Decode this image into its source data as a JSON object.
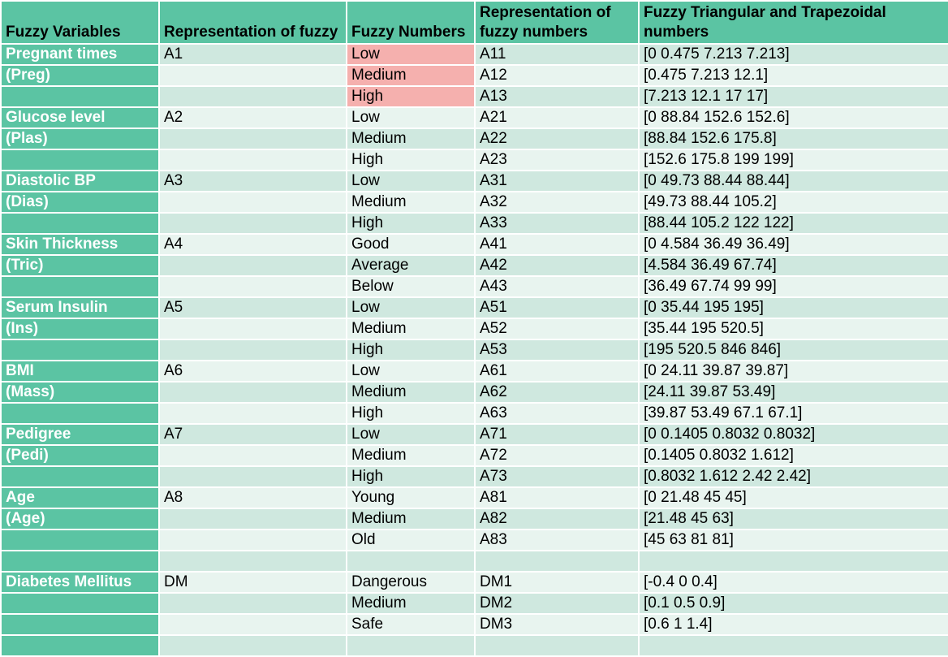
{
  "headers": [
    "Fuzzy Variables",
    "Representation of fuzzy",
    "Fuzzy Numbers",
    "Representation of fuzzy numbers",
    "Fuzzy Triangular and Trapezoidal numbers"
  ],
  "highlight_color": "#f5b0ae",
  "header_color": "#5bc4a3",
  "rows": [
    {
      "var": "Pregnant times",
      "rep": "A1",
      "num": "Low",
      "code": "A11",
      "tri": "[0 0.475 7.213 7.213]",
      "hl": true
    },
    {
      "var": "(Preg)",
      "rep": "",
      "num": "Medium",
      "code": "A12",
      "tri": "[0.475 7.213 12.1]",
      "hl": true
    },
    {
      "var": "",
      "rep": "",
      "num": "High",
      "code": "A13",
      "tri": "[7.213 12.1 17 17]",
      "hl": true
    },
    {
      "var": "Glucose level",
      "rep": "A2",
      "num": "Low",
      "code": "A21",
      "tri": "[0 88.84 152.6 152.6]"
    },
    {
      "var": "(Plas)",
      "rep": "",
      "num": "Medium",
      "code": "A22",
      "tri": "[88.84 152.6 175.8]"
    },
    {
      "var": "",
      "rep": "",
      "num": "High",
      "code": "A23",
      "tri": "[152.6 175.8 199 199]"
    },
    {
      "var": "Diastolic BP",
      "rep": "A3",
      "num": "Low",
      "code": "A31",
      "tri": "[0 49.73 88.44 88.44]"
    },
    {
      "var": "(Dias)",
      "rep": "",
      "num": "Medium",
      "code": "A32",
      "tri": "[49.73 88.44 105.2]"
    },
    {
      "var": "",
      "rep": "",
      "num": "High",
      "code": "A33",
      "tri": "[88.44 105.2 122 122]"
    },
    {
      "var": "Skin Thickness",
      "rep": "A4",
      "num": "Good",
      "code": "A41",
      "tri": "[0 4.584 36.49 36.49]"
    },
    {
      "var": "(Tric)",
      "rep": "",
      "num": "Average",
      "code": "A42",
      "tri": "[4.584 36.49 67.74]"
    },
    {
      "var": "",
      "rep": "",
      "num": "Below",
      "code": "A43",
      "tri": "[36.49 67.74 99 99]"
    },
    {
      "var": "Serum Insulin",
      "rep": "A5",
      "num": "Low",
      "code": "A51",
      "tri": "[0 35.44 195 195]"
    },
    {
      "var": "(Ins)",
      "rep": "",
      "num": "Medium",
      "code": "A52",
      "tri": "[35.44 195 520.5]"
    },
    {
      "var": "",
      "rep": "",
      "num": "High",
      "code": "A53",
      "tri": "[195 520.5 846 846]"
    },
    {
      "var": "BMI",
      "rep": "A6",
      "num": "Low",
      "code": "A61",
      "tri": "[0 24.11 39.87 39.87]"
    },
    {
      "var": "(Mass)",
      "rep": "",
      "num": "Medium",
      "code": "A62",
      "tri": "[24.11 39.87 53.49]"
    },
    {
      "var": "",
      "rep": "",
      "num": "High",
      "code": "A63",
      "tri": "[39.87 53.49 67.1 67.1]"
    },
    {
      "var": "Pedigree",
      "rep": "A7",
      "num": "Low",
      "code": "A71",
      "tri": "[0 0.1405 0.8032 0.8032]"
    },
    {
      "var": "(Pedi)",
      "rep": "",
      "num": "Medium",
      "code": "A72",
      "tri": "[0.1405 0.8032 1.612]"
    },
    {
      "var": "",
      "rep": "",
      "num": "High",
      "code": "A73",
      "tri": "[0.8032 1.612 2.42 2.42]"
    },
    {
      "var": "Age",
      "rep": "A8",
      "num": "Young",
      "code": "A81",
      "tri": "[0 21.48 45 45]"
    },
    {
      "var": "(Age)",
      "rep": "",
      "num": "Medium",
      "code": "A82",
      "tri": "[21.48 45 63]"
    },
    {
      "var": "",
      "rep": "",
      "num": "Old",
      "code": "A83",
      "tri": "[45 63 81 81]"
    },
    {
      "var": "",
      "rep": "",
      "num": "",
      "code": "",
      "tri": ""
    },
    {
      "var": "Diabetes Mellitus",
      "rep": "DM",
      "num": "Dangerous",
      "code": "DM1",
      "tri": "[-0.4 0 0.4]"
    },
    {
      "var": "",
      "rep": "",
      "num": "Medium",
      "code": "DM2",
      "tri": "[0.1 0.5 0.9]"
    },
    {
      "var": "",
      "rep": "",
      "num": "Safe",
      "code": "DM3",
      "tri": "[0.6 1 1.4]"
    },
    {
      "var": "",
      "rep": "",
      "num": "",
      "code": "",
      "tri": ""
    }
  ]
}
